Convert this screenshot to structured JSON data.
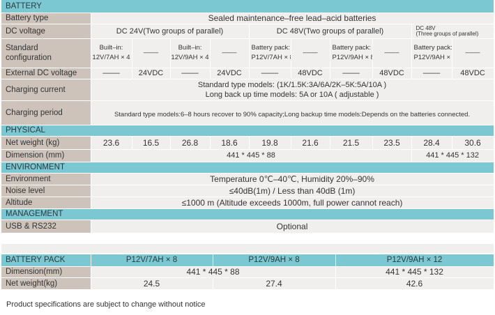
{
  "battery": {
    "section": "BATTERY",
    "type_label": "Battery type",
    "type_value": "Sealed maintenance–free lead–acid batteries",
    "dc_label": "DC voltage",
    "dc_24": "DC 24V(Two groups of parallel)",
    "dc_48": "DC 48V(Two groups of parallel)",
    "dc_48b_line1": "DC 48V",
    "dc_48b_line2": "(Three groups of parallel)",
    "std_label_1": "Standard",
    "std_label_2": "configuration",
    "std_cells": [
      {
        "l1": "Built–in:",
        "l2": "12V/7AH × 4"
      },
      {
        "l1": "––––",
        "l2": ""
      },
      {
        "l1": "Built–in:",
        "l2": "12V/9AH × 4"
      },
      {
        "l1": "––––",
        "l2": ""
      },
      {
        "l1": "Battery pack:",
        "l2": "P12V/7AH × 8"
      },
      {
        "l1": "––––",
        "l2": ""
      },
      {
        "l1": "Battery pack:",
        "l2": "P12V/9AH × 8"
      },
      {
        "l1": "––––",
        "l2": ""
      },
      {
        "l1": "Battery pack:",
        "l2": "P12V/9AH × 12"
      },
      {
        "l1": "––––",
        "l2": ""
      }
    ],
    "ext_label": "External DC voltage",
    "ext_cells": [
      "––––",
      "24VDC",
      "––––",
      "24VDC",
      "––––",
      "48VDC",
      "––––",
      "48VDC",
      "––––",
      "48VDC"
    ],
    "charging_current_label": "Charging current",
    "charging_current_l1": "Standard type models: (1K/1.5K:3A/6A/2K–5K:5A/10A )",
    "charging_current_l2": "Long back up time models: 5A or 10A ( adjustable )",
    "charging_period_label": "Charging period",
    "charging_period_value": "Standard type models:6–8 hours recover to 90% capacity;Long backup time models:Depends on the batteries connected."
  },
  "physical": {
    "section": "PHYSICAL",
    "weight_label": "Net weight (kg)",
    "weights": [
      "23.6",
      "16.5",
      "26.8",
      "18.6",
      "19.8",
      "21.6",
      "21.5",
      "23.5",
      "28.4",
      "30.6"
    ],
    "dimension_label": "Dimension (mm)",
    "dimension_a": "441 * 445 * 88",
    "dimension_b": "441 * 445 * 132"
  },
  "environment": {
    "section": "ENVIRONMENT",
    "env_label": "Environment",
    "env_value": "Temperature 0℃–40℃, Humidity 20%–90%",
    "noise_label": "Noise level",
    "noise_value": "≤40dB(1m) / Less than 40dB (1m)",
    "altitude_label": "Altitude",
    "altitude_value": "≤1000 m (Altitude exceeds 1000m, full power cannot reach)"
  },
  "management": {
    "section": "MANAGEMENT",
    "usb_label": "USB & RS232",
    "usb_value": "Optional"
  },
  "pack": {
    "section": "BATTERY PACK",
    "cols": [
      "P12V/7AH × 8",
      "P12V/9AH × 8",
      "P12V/9AH × 12"
    ],
    "dimension_label": "Dimension(mm)",
    "dimension_a": "441 * 445 * 88",
    "dimension_b": "441 * 445 * 132",
    "weight_label": "Net weight(kg)",
    "weights": [
      "24.5",
      "27.4",
      "42.6"
    ]
  },
  "footnote": "Product specifications are subject to change without notice"
}
